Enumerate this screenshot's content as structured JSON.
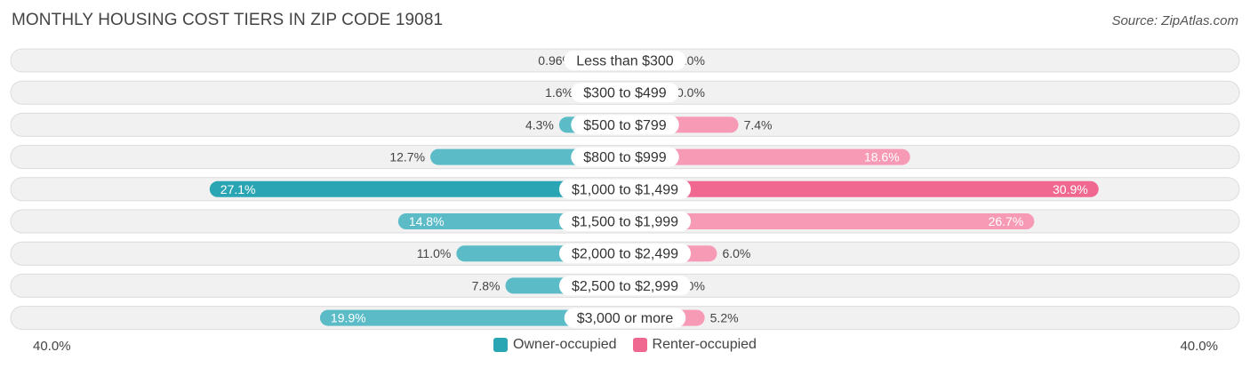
{
  "title": "MONTHLY HOUSING COST TIERS IN ZIP CODE 19081",
  "source": "Source: ZipAtlas.com",
  "chart_data": {
    "type": "bar",
    "orientation": "horizontal-diverging",
    "categories": [
      "Less than $300",
      "$300 to $499",
      "$500 to $799",
      "$800 to $999",
      "$1,000 to $1,499",
      "$1,500 to $1,999",
      "$2,000 to $2,499",
      "$2,500 to $2,999",
      "$3,000 or more"
    ],
    "series": [
      {
        "name": "Owner-occupied",
        "color": "#5bbcc8",
        "highlight_color": "#2aa5b3",
        "values": [
          0.96,
          1.6,
          4.3,
          12.7,
          27.1,
          14.8,
          11.0,
          7.8,
          19.9
        ],
        "labels": [
          "0.96%",
          "1.6%",
          "4.3%",
          "12.7%",
          "27.1%",
          "14.8%",
          "11.0%",
          "7.8%",
          "19.9%"
        ]
      },
      {
        "name": "Renter-occupied",
        "color": "#f79ab6",
        "highlight_color": "#f06890",
        "values": [
          0.0,
          0.0,
          7.4,
          18.6,
          30.9,
          26.7,
          6.0,
          0.0,
          5.2
        ],
        "labels": [
          "0.0%",
          "0.0%",
          "7.4%",
          "18.6%",
          "30.9%",
          "26.7%",
          "6.0%",
          "0.0%",
          "5.2%"
        ]
      }
    ],
    "xlim": [
      -40,
      40
    ],
    "axis_min_label": "40.0%",
    "axis_max_label": "40.0%",
    "legend_position": "bottom-center",
    "grid": false
  }
}
